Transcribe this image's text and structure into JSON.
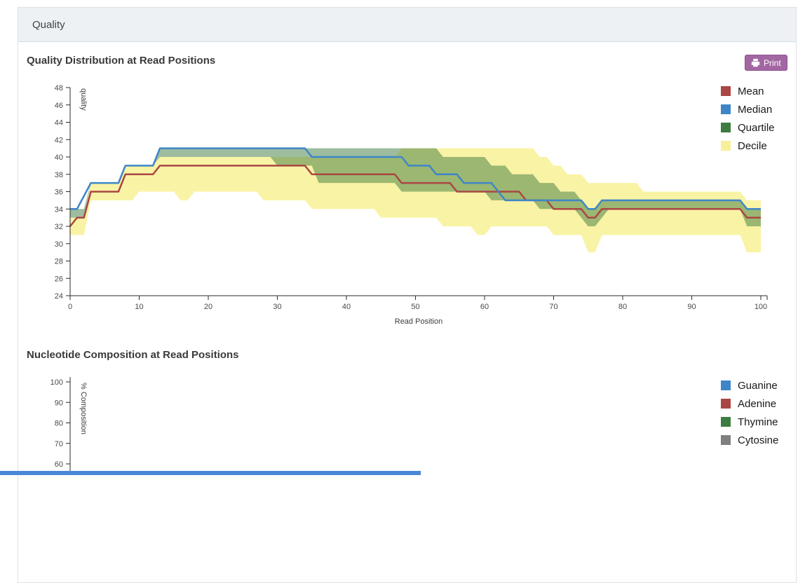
{
  "panel": {
    "header_title": "Quality"
  },
  "sections": [
    {
      "title": "Quality Distribution at Read Positions",
      "print_label": "Print"
    },
    {
      "title": "Nucleotide Composition at Read Positions"
    }
  ],
  "colors": {
    "mean_red": "#aa4643",
    "median_blue": "#3e86c7",
    "quartile_green": "#3d7c40",
    "decile_yellow": "#f9f3a5",
    "cytosine_gray": "#7f7f7f",
    "print_button_purple": "#a266a2",
    "header_bg": "#edf1f4",
    "footer_bar_blue": "#4b87d7"
  },
  "chart_data": [
    {
      "type": "line",
      "title": "Quality Distribution at Read Positions",
      "xlabel": "Read Position",
      "ylabel": "quality",
      "xlim": [
        0,
        100
      ],
      "ylim": [
        24,
        48
      ],
      "x_ticks": [
        0,
        10,
        20,
        30,
        40,
        50,
        60,
        70,
        80,
        90,
        100
      ],
      "y_ticks": [
        24,
        26,
        28,
        30,
        32,
        34,
        36,
        38,
        40,
        42,
        44,
        46,
        48
      ],
      "grid": false,
      "legend_position": "top-right",
      "legend": [
        {
          "label": "Mean",
          "color": "#aa4643"
        },
        {
          "label": "Median",
          "color": "#3e86c7"
        },
        {
          "label": "Quartile",
          "color": "#3d7c40"
        },
        {
          "label": "Decile",
          "color": "#f8ef9a"
        }
      ],
      "bands": [
        {
          "name": "Decile",
          "color": "#f9f3a5",
          "opacity": 1,
          "segments": [
            [
              0,
              2,
              31,
              33
            ],
            [
              3,
              7,
              35,
              37
            ],
            [
              8,
              9,
              35,
              39
            ],
            [
              10,
              12,
              36,
              39
            ],
            [
              13,
              15,
              36,
              40
            ],
            [
              16,
              17,
              35,
              40
            ],
            [
              18,
              27,
              36,
              40
            ],
            [
              28,
              34,
              35,
              40
            ],
            [
              35,
              44,
              34,
              40
            ],
            [
              45,
              47,
              33,
              40
            ],
            [
              48,
              53,
              33,
              41
            ],
            [
              54,
              58,
              32,
              41
            ],
            [
              59,
              60,
              31,
              41
            ],
            [
              61,
              67,
              32,
              41
            ],
            [
              68,
              69,
              32,
              40
            ],
            [
              70,
              71,
              31,
              39
            ],
            [
              72,
              74,
              31,
              38
            ],
            [
              75,
              76,
              29,
              37
            ],
            [
              77,
              82,
              31,
              37
            ],
            [
              83,
              97,
              31,
              36
            ],
            [
              98,
              100,
              29,
              35
            ]
          ]
        },
        {
          "name": "Quartile",
          "color": "#3d7c40",
          "opacity": 0.5,
          "segments": [
            [
              0,
              2,
              33,
              34
            ],
            [
              3,
              7,
              37,
              37
            ],
            [
              8,
              12,
              39,
              39
            ],
            [
              13,
              29,
              40,
              41
            ],
            [
              30,
              35,
              39,
              41
            ],
            [
              36,
              47,
              37,
              41
            ],
            [
              48,
              53,
              36,
              41
            ],
            [
              54,
              60,
              36,
              40
            ],
            [
              61,
              63,
              35,
              39
            ],
            [
              64,
              67,
              35,
              38
            ],
            [
              68,
              70,
              34,
              37
            ],
            [
              71,
              73,
              34,
              36
            ],
            [
              74,
              74,
              33,
              35
            ],
            [
              75,
              76,
              32,
              34
            ],
            [
              77,
              77,
              33,
              35
            ],
            [
              78,
              97,
              34,
              35
            ],
            [
              98,
              100,
              32,
              34
            ]
          ]
        }
      ],
      "lines": [
        {
          "name": "Mean",
          "color": "#aa4643",
          "segments": [
            [
              0,
              0,
              32
            ],
            [
              1,
              2,
              33
            ],
            [
              3,
              7,
              36
            ],
            [
              8,
              12,
              38
            ],
            [
              13,
              34,
              39
            ],
            [
              35,
              47,
              38
            ],
            [
              48,
              55,
              37
            ],
            [
              56,
              65,
              36
            ],
            [
              66,
              69,
              35
            ],
            [
              70,
              74,
              34
            ],
            [
              75,
              76,
              33
            ],
            [
              77,
              97,
              34
            ],
            [
              98,
              100,
              33
            ]
          ]
        },
        {
          "name": "Median",
          "color": "#3e86c7",
          "segments": [
            [
              0,
              1,
              34
            ],
            [
              3,
              7,
              37
            ],
            [
              8,
              12,
              39
            ],
            [
              13,
              34,
              41
            ],
            [
              35,
              48,
              40
            ],
            [
              49,
              52,
              39
            ],
            [
              53,
              56,
              38
            ],
            [
              57,
              61,
              37
            ],
            [
              62,
              62,
              36
            ],
            [
              63,
              74,
              35
            ],
            [
              75,
              76,
              34
            ],
            [
              77,
              97,
              35
            ],
            [
              98,
              100,
              34
            ]
          ]
        }
      ]
    },
    {
      "type": "line",
      "title": "Nucleotide Composition at Read Positions",
      "ylabel": "% Composition",
      "visible_y_ticks": [
        100,
        90,
        80,
        70,
        60
      ],
      "ylim_visible": [
        55,
        100
      ],
      "grid": false,
      "legend_position": "top-right",
      "legend": [
        {
          "label": "Guanine",
          "color": "#3e86c7"
        },
        {
          "label": "Adenine",
          "color": "#aa4643"
        },
        {
          "label": "Thymine",
          "color": "#3d7c40"
        },
        {
          "label": "Cytosine",
          "color": "#7f7f7f"
        }
      ],
      "note_series_not_visible": "plot area cut off below 60% in screenshot"
    }
  ]
}
